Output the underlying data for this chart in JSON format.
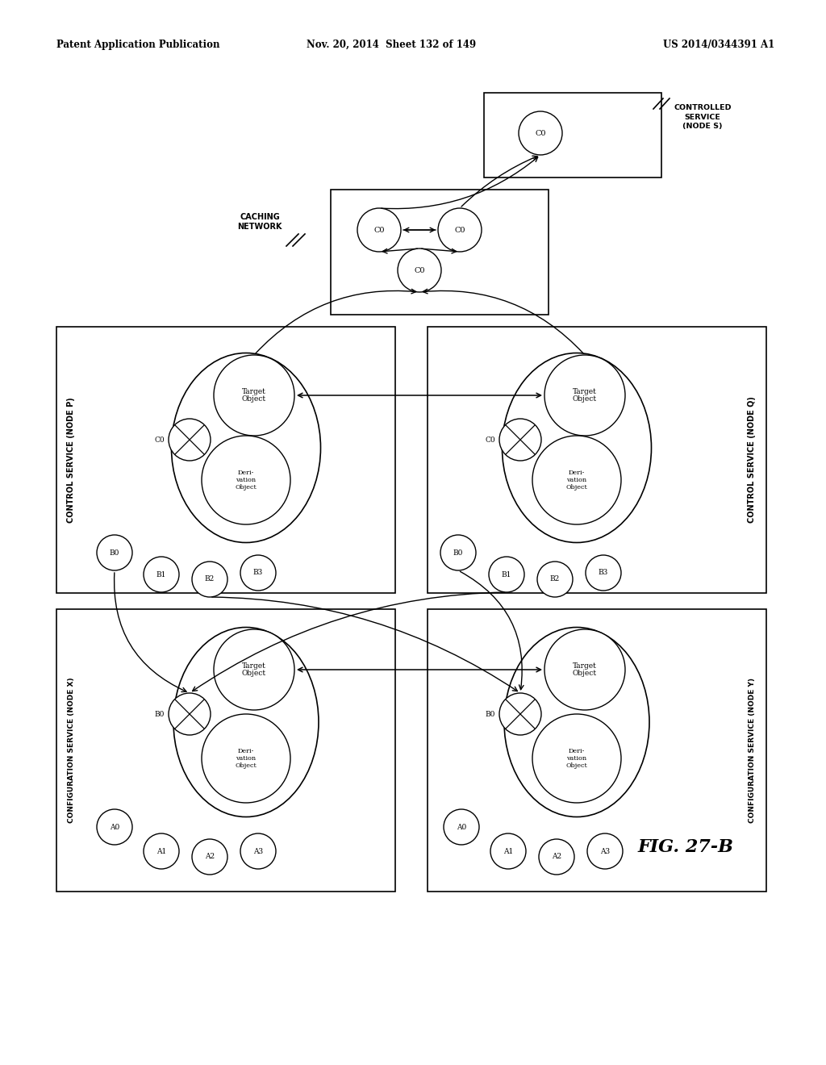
{
  "header_left": "Patent Application Publication",
  "header_mid": "Nov. 20, 2014  Sheet 132 of 149",
  "header_right": "US 2014/0344391 A1",
  "figure_label": "FIG. 27-B",
  "background": "#ffffff",
  "fig_w": 10.24,
  "fig_h": 13.2,
  "dpi": 100
}
